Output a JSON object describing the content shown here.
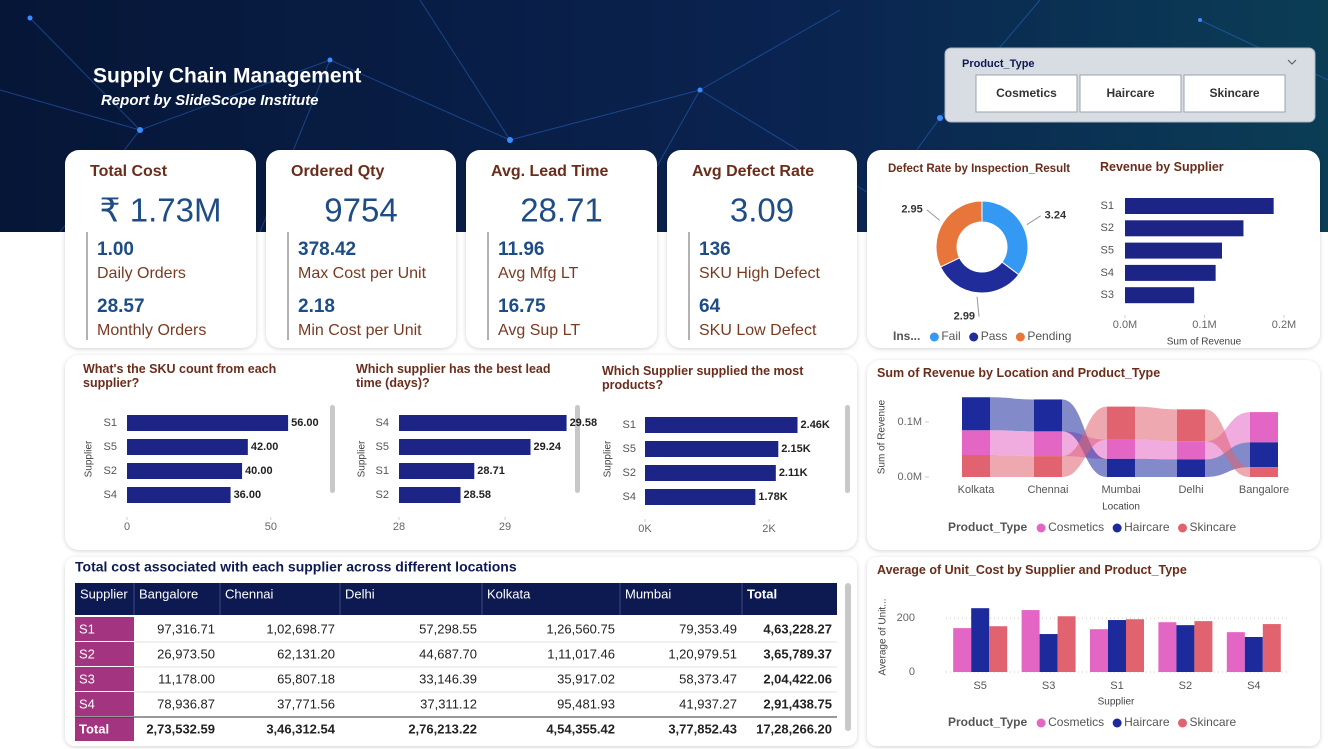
{
  "header": {
    "title": "Supply Chain Management",
    "subtitle": "Report by SlideScope Institute"
  },
  "slicer": {
    "title": "Product_Type",
    "options": [
      "Cosmetics",
      "Haircare",
      "Skincare"
    ]
  },
  "kpis": [
    {
      "title": "Total Cost",
      "value": "₹ 1.73M",
      "items": [
        {
          "value": "1.00",
          "label": "Daily Orders"
        },
        {
          "value": 28.57,
          "label": "Monthly Orders"
        }
      ]
    },
    {
      "title": "Ordered Qty",
      "value": 9754,
      "items": [
        {
          "value": 378.42,
          "label": "Max Cost per Unit"
        },
        {
          "value": 2.18,
          "label": "Min Cost per Unit"
        }
      ]
    },
    {
      "title": "Avg. Lead Time",
      "value": 28.71,
      "items": [
        {
          "value": 11.96,
          "label": "Avg Mfg LT"
        },
        {
          "value": 16.75,
          "label": "Avg Sup LT"
        }
      ]
    },
    {
      "title": "Avg Defect Rate",
      "value": 3.09,
      "items": [
        {
          "value": 136,
          "label": "SKU High Defect"
        },
        {
          "value": 64,
          "label": "SKU Low Defect"
        }
      ]
    }
  ],
  "chart_data": [
    {
      "type": "pie",
      "title": "Defect Rate by Inspection_Result",
      "legend_title": "Ins...",
      "categories": [
        "Fail",
        "Pass",
        "Pending"
      ],
      "values": [
        3.24,
        2.99,
        2.95
      ],
      "colors": [
        "#3399f3",
        "#1f2c9a",
        "#e8763a"
      ],
      "donut": true
    },
    {
      "type": "bar",
      "horizontal": true,
      "title": "Revenue by Supplier",
      "categories": [
        "S1",
        "S2",
        "S5",
        "S4",
        "S3"
      ],
      "values": [
        187000,
        149000,
        122000,
        114000,
        87000
      ],
      "color": "#1c2585",
      "xlim": [
        0,
        200000
      ],
      "xticks": [
        {
          "value": 0,
          "label": "0.0M"
        },
        {
          "value": 100000,
          "label": "0.1M"
        },
        {
          "value": 200000,
          "label": "0.2M"
        }
      ],
      "xlabel": "Sum of Revenue"
    },
    {
      "type": "bar",
      "horizontal": true,
      "title": "What's the SKU count from each supplier?",
      "ylabel": "Supplier",
      "categories": [
        "S1",
        "S5",
        "S2",
        "S4"
      ],
      "values": [
        56,
        42,
        40,
        36
      ],
      "value_labels": [
        "56.00",
        "42.00",
        "40.00",
        "36.00"
      ],
      "color": "#1c2585",
      "xlim": [
        0,
        65
      ],
      "xticks": [
        0,
        50
      ]
    },
    {
      "type": "bar",
      "horizontal": true,
      "title": "Which supplier has the best lead time (days)?",
      "ylabel": "Supplier",
      "categories": [
        "S4",
        "S5",
        "S1",
        "S2"
      ],
      "values": [
        29.58,
        29.24,
        28.71,
        28.58
      ],
      "value_labels": [
        "29.58",
        "29.24",
        "28.71",
        "28.58"
      ],
      "color": "#1c2585",
      "xlim": [
        28,
        29.65
      ],
      "xticks": [
        28,
        29
      ]
    },
    {
      "type": "bar",
      "horizontal": true,
      "title": "Which Supplier supplied the most products?",
      "ylabel": "Supplier",
      "categories": [
        "S1",
        "S5",
        "S2",
        "S4"
      ],
      "values": [
        2460,
        2150,
        2110,
        1780
      ],
      "value_labels": [
        "2.46K",
        "2.15K",
        "2.11K",
        "1.78K"
      ],
      "color": "#1c2585",
      "xlim": [
        0,
        3000
      ],
      "xticks": [
        {
          "value": 0,
          "label": "0K"
        },
        {
          "value": 2000,
          "label": "2K"
        }
      ]
    },
    {
      "type": "ribbon",
      "title": "Sum of Revenue by Location and Product_Type",
      "categories": [
        "Kolkata",
        "Chennai",
        "Mumbai",
        "Delhi",
        "Bangalore"
      ],
      "series": [
        {
          "name": "Cosmetics",
          "color": "#e466c4",
          "values": [
            45000,
            45000,
            35000,
            33000,
            55000
          ]
        },
        {
          "name": "Haircare",
          "color": "#1c2a9c",
          "values": [
            60000,
            58000,
            33000,
            32000,
            45000
          ]
        },
        {
          "name": "Skincare",
          "color": "#e0636f",
          "values": [
            40000,
            38000,
            60000,
            58000,
            18000
          ]
        }
      ],
      "ylim": [
        0,
        150000
      ],
      "yticks": [
        {
          "value": 0,
          "label": "0.0M"
        },
        {
          "value": 100000,
          "label": "0.1M"
        }
      ],
      "xlabel": "Location",
      "ylabel": "Sum of Revenue",
      "legend_title": "Product_Type"
    },
    {
      "type": "grouped_bar",
      "title": "Average of Unit_Cost by Supplier and Product_Type",
      "categories": [
        "S5",
        "S3",
        "S1",
        "S2",
        "S4"
      ],
      "series": [
        {
          "name": "Cosmetics",
          "color": "#e466c4",
          "values": [
            163,
            230,
            159,
            185,
            148
          ]
        },
        {
          "name": "Haircare",
          "color": "#1c2a9c",
          "values": [
            237,
            141,
            193,
            174,
            130
          ]
        },
        {
          "name": "Skincare",
          "color": "#e0636f",
          "values": [
            170,
            207,
            196,
            189,
            178
          ]
        }
      ],
      "ylim": [
        0,
        260
      ],
      "yticks": [
        0,
        200
      ],
      "grid": true,
      "xlabel": "Supplier",
      "ylabel": "Average of Unit...",
      "legend_title": "Product_Type"
    }
  ],
  "table": {
    "title": "Total cost associated with each supplier across different locations",
    "columns": [
      "Supplier",
      "Bangalore",
      "Chennai",
      "Delhi",
      "Kolkata",
      "Mumbai",
      "Total"
    ],
    "rows": [
      [
        "S1",
        "97,316.71",
        "1,02,698.77",
        "57,298.55",
        "1,26,560.75",
        "79,353.49",
        "4,63,228.27"
      ],
      [
        "S2",
        "26,973.50",
        "62,131.20",
        "44,687.70",
        "1,11,017.46",
        "1,20,979.51",
        "3,65,789.37"
      ],
      [
        "S3",
        "11,178.00",
        "65,807.18",
        "33,146.39",
        "35,917.02",
        "58,373.47",
        "2,04,422.06"
      ],
      [
        "S4",
        "78,936.87",
        "37,771.56",
        "37,311.12",
        "95,481.93",
        "41,937.27",
        "2,91,438.75"
      ],
      [
        "Total",
        "2,73,532.59",
        "3,46,312.54",
        "2,76,213.22",
        "4,54,355.42",
        "3,77,852.43",
        "17,28,266.20"
      ]
    ]
  }
}
